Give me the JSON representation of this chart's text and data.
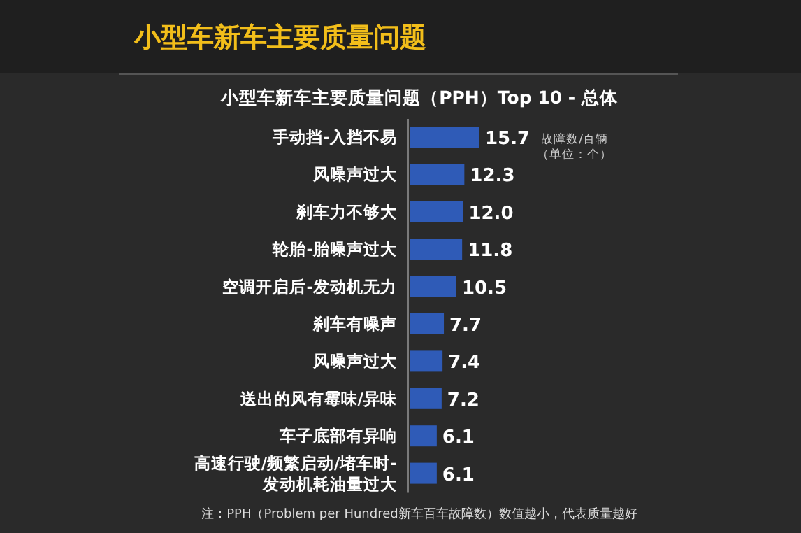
{
  "chart_data": {
    "type": "bar",
    "orientation": "horizontal",
    "title": "小型车新车主要质量问题",
    "subtitle": "小型车新车主要质量问题（PPH）Top 10 - 总体",
    "categories": [
      "手动挡-入挡不易",
      "风噪声过大",
      "刹车力不够大",
      "轮胎-胎噪声过大",
      "空调开启后-发动机无力",
      "刹车有噪声",
      "风噪声过大",
      "送出的风有霉味/异味",
      "车子底部有异响",
      "高速行驶/频繁启动/堵车时-发动机耗油量过大"
    ],
    "values": [
      15.7,
      12.3,
      12.0,
      11.8,
      10.5,
      7.7,
      7.4,
      7.2,
      6.1,
      6.1
    ],
    "color": "#2f5bb7",
    "value_labels": [
      "15.7",
      "12.3",
      "12.0",
      "11.8",
      "10.5",
      "7.7",
      "7.4",
      "7.2",
      "6.1",
      "6.1"
    ],
    "annotations": [
      "故障数/百辆",
      "（单位：个）",
      "注：PPH（Problem per Hundred新车百车故障数）数值越小，代表质量越好"
    ]
  }
}
